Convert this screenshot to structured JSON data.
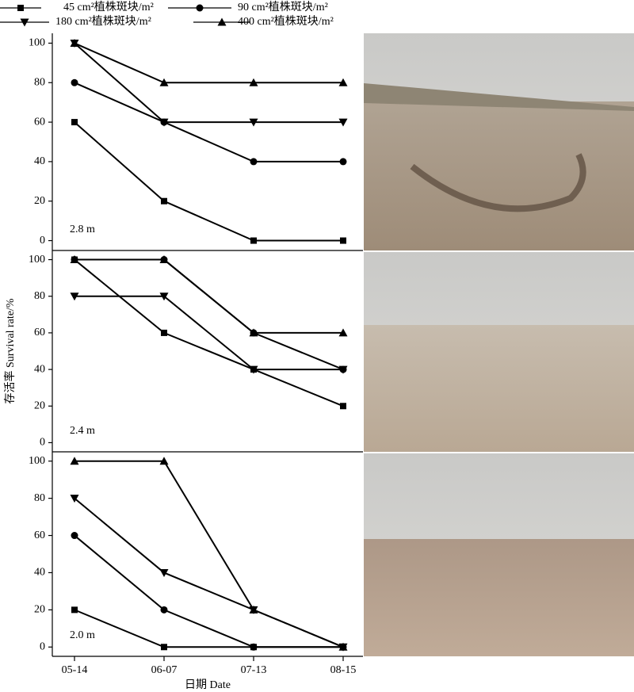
{
  "chart_data": [
    {
      "type": "line",
      "label": "2.8 m",
      "ylim": [
        -5,
        105
      ],
      "yticks": [
        0,
        20,
        40,
        60,
        80,
        100
      ],
      "series": [
        {
          "name": "45 cm²植株斑块/m²",
          "marker": "square",
          "color": "#000000",
          "values": [
            60,
            20,
            0,
            0
          ]
        },
        {
          "name": "90 cm²植株斑块/m²",
          "marker": "circle",
          "color": "#000000",
          "values": [
            80,
            60,
            40,
            40
          ]
        },
        {
          "name": "180 cm²植株斑块/m²",
          "marker": "triangle-down",
          "color": "#000000",
          "values": [
            100,
            60,
            60,
            60
          ]
        },
        {
          "name": "400 cm²植株斑块/m²",
          "marker": "triangle-up",
          "color": "#000000",
          "values": [
            100,
            80,
            80,
            80
          ]
        }
      ]
    },
    {
      "type": "line",
      "label": "2.4 m",
      "ylabel": "存活率 Survival rate/%",
      "ylim": [
        -5,
        105
      ],
      "yticks": [
        0,
        20,
        40,
        60,
        80,
        100
      ],
      "series": [
        {
          "name": "45 cm²植株斑块/m²",
          "marker": "square",
          "color": "#000000",
          "values": [
            100,
            60,
            40,
            20
          ]
        },
        {
          "name": "90 cm²植株斑块/m²",
          "marker": "circle",
          "color": "#000000",
          "values": [
            100,
            100,
            60,
            40
          ]
        },
        {
          "name": "180 cm²植株斑块/m²",
          "marker": "triangle-down",
          "color": "#000000",
          "values": [
            80,
            80,
            40,
            40
          ]
        },
        {
          "name": "400 cm²植株斑块/m²",
          "marker": "triangle-up",
          "color": "#000000",
          "values": [
            100,
            100,
            60,
            60
          ]
        }
      ]
    },
    {
      "type": "line",
      "label": "2.0 m",
      "xlabel": "日期 Date",
      "categories": [
        "05-14",
        "06-07",
        "07-13",
        "08-15"
      ],
      "ylim": [
        -5,
        105
      ],
      "yticks": [
        0,
        20,
        40,
        60,
        80,
        100
      ],
      "series": [
        {
          "name": "45 cm²植株斑块/m²",
          "marker": "square",
          "color": "#000000",
          "values": [
            20,
            0,
            0,
            0
          ]
        },
        {
          "name": "90 cm²植株斑块/m²",
          "marker": "circle",
          "color": "#000000",
          "values": [
            60,
            20,
            0,
            0
          ]
        },
        {
          "name": "180 cm²植株斑块/m²",
          "marker": "triangle-down",
          "color": "#000000",
          "values": [
            80,
            40,
            20,
            0
          ]
        },
        {
          "name": "400 cm²植株斑块/m²",
          "marker": "triangle-up",
          "color": "#000000",
          "values": [
            100,
            100,
            20,
            0
          ]
        }
      ]
    }
  ]
}
